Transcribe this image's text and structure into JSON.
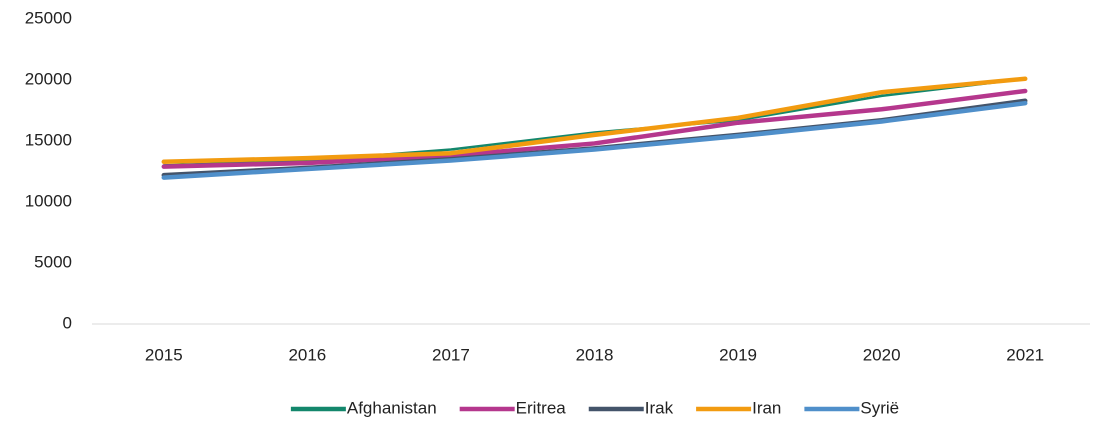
{
  "chart_data": {
    "type": "line",
    "categories": [
      "2015",
      "2016",
      "2017",
      "2018",
      "2019",
      "2020",
      "2021"
    ],
    "series": [
      {
        "name": "Afghanistan",
        "color": "#13876c",
        "values": [
          13000,
          13400,
          14300,
          15700,
          16700,
          18700,
          20100
        ]
      },
      {
        "name": "Eritrea",
        "color": "#b5378d",
        "values": [
          12900,
          13200,
          13800,
          14800,
          16500,
          17600,
          19100
        ]
      },
      {
        "name": "Irak",
        "color": "#44546a",
        "values": [
          12200,
          12800,
          13500,
          14400,
          15500,
          16700,
          18300
        ]
      },
      {
        "name": "Iran",
        "color": "#f29b10",
        "values": [
          13300,
          13600,
          14000,
          15500,
          16900,
          19000,
          20100
        ]
      },
      {
        "name": "Syrië",
        "color": "#4f8fca",
        "values": [
          12000,
          12700,
          13400,
          14300,
          15400,
          16600,
          18100
        ]
      }
    ],
    "ylim": [
      0,
      25000
    ],
    "yticks": [
      0,
      5000,
      10000,
      15000,
      20000,
      25000
    ],
    "grid": false,
    "legend": "bottom"
  }
}
